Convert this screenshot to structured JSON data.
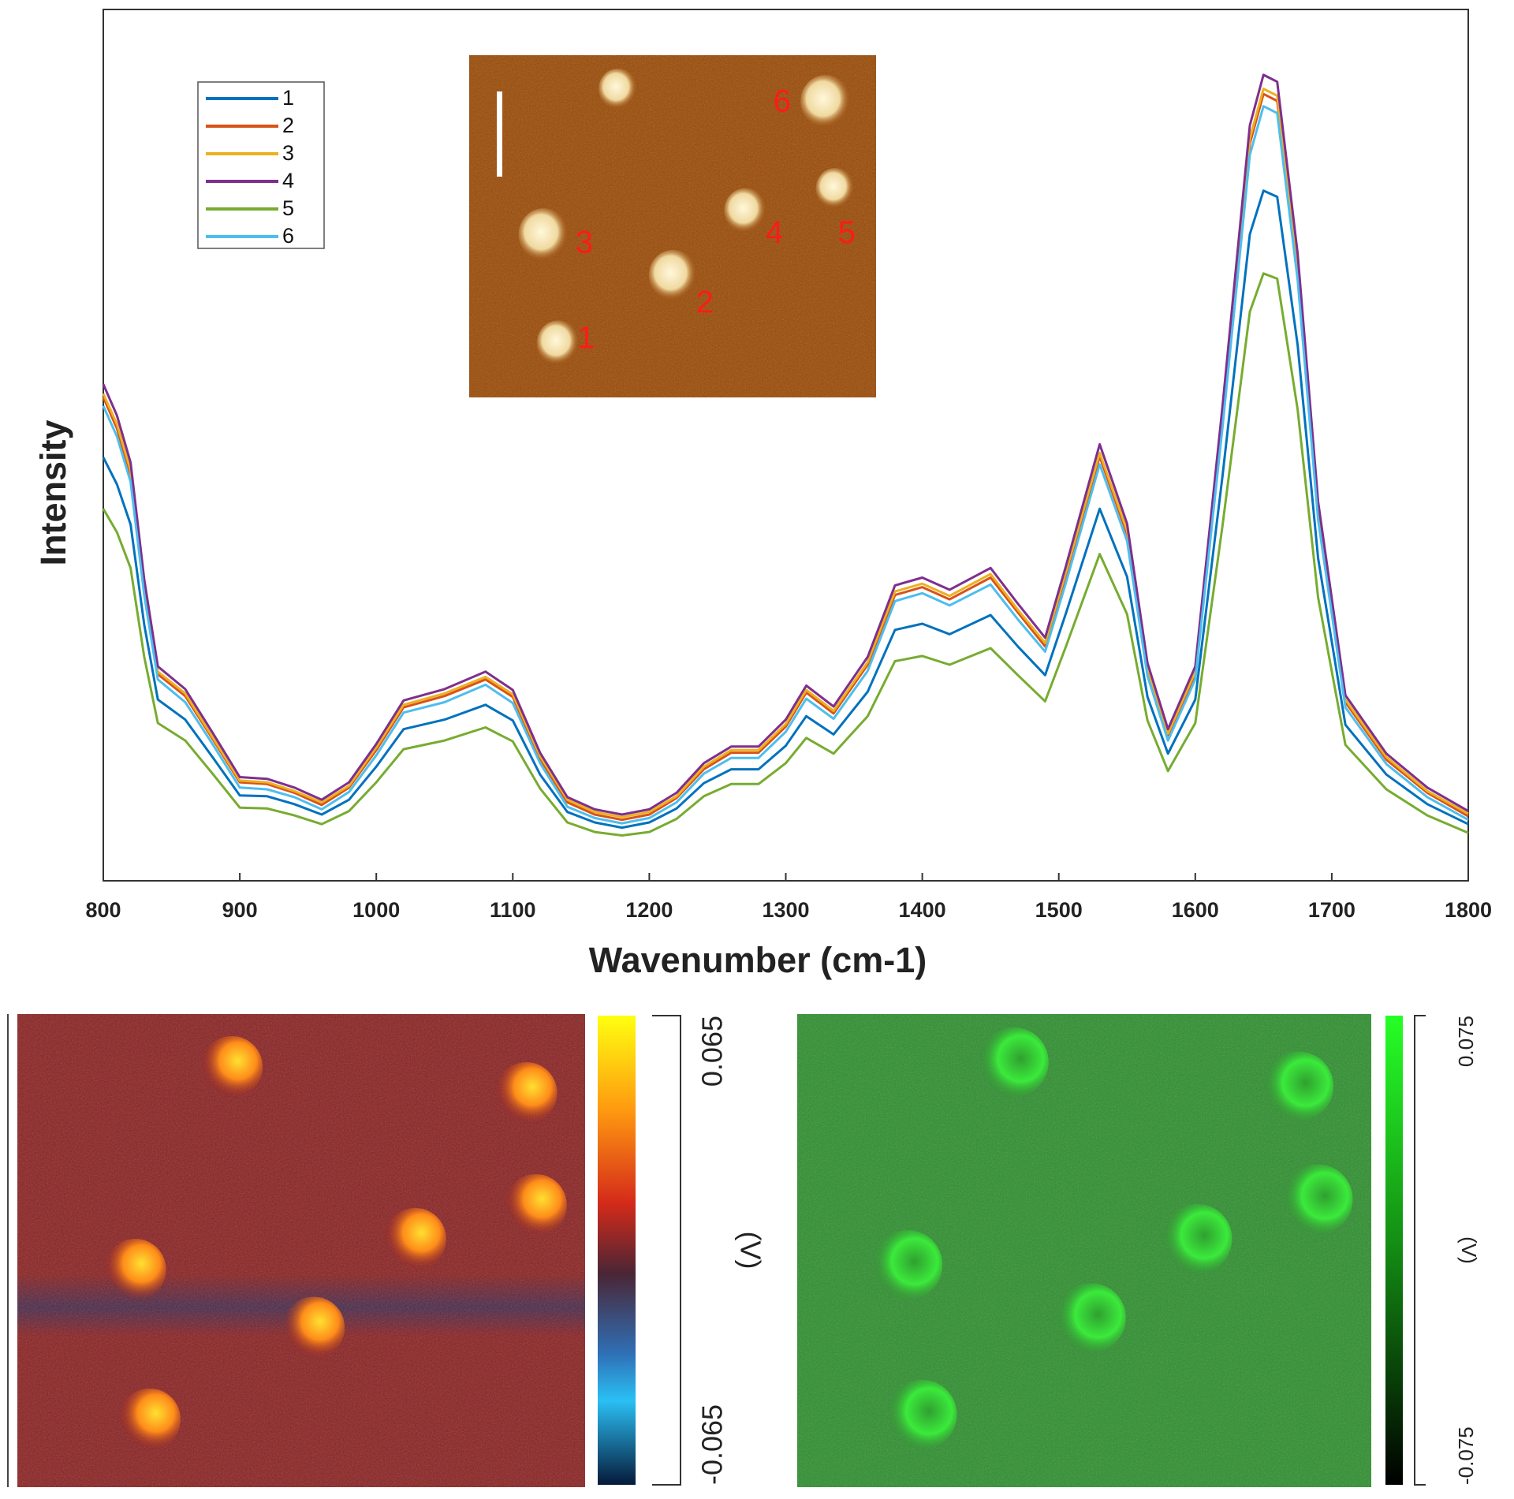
{
  "chart_data": [
    {
      "type": "line",
      "xlabel": "Wavenumber (cm-1)",
      "ylabel": "Intensity",
      "x": [
        800,
        810,
        820,
        830,
        840,
        860,
        880,
        900,
        920,
        940,
        960,
        980,
        1000,
        1020,
        1050,
        1080,
        1100,
        1120,
        1140,
        1160,
        1180,
        1200,
        1220,
        1240,
        1260,
        1280,
        1300,
        1315,
        1335,
        1360,
        1380,
        1400,
        1420,
        1450,
        1470,
        1490,
        1505,
        1530,
        1550,
        1565,
        1580,
        1600,
        1620,
        1640,
        1650,
        1660,
        1675,
        1690,
        1710,
        1740,
        1770,
        1800
      ],
      "xlim": [
        800,
        1800
      ],
      "xticks": [
        800,
        900,
        1000,
        1100,
        1200,
        1300,
        1400,
        1500,
        1600,
        1700,
        1800
      ],
      "ylim": [
        0,
        1
      ],
      "legend": "upper left",
      "series": [
        {
          "name": "1",
          "color": "#0072bd",
          "values": [
            0.486,
            0.455,
            0.409,
            0.294,
            0.208,
            0.185,
            0.142,
            0.098,
            0.097,
            0.088,
            0.076,
            0.093,
            0.131,
            0.174,
            0.185,
            0.202,
            0.184,
            0.122,
            0.079,
            0.067,
            0.061,
            0.067,
            0.083,
            0.112,
            0.128,
            0.128,
            0.155,
            0.189,
            0.168,
            0.217,
            0.288,
            0.295,
            0.283,
            0.305,
            0.269,
            0.236,
            0.306,
            0.427,
            0.349,
            0.211,
            0.146,
            0.208,
            0.465,
            0.742,
            0.792,
            0.785,
            0.615,
            0.37,
            0.179,
            0.122,
            0.088,
            0.065
          ]
        },
        {
          "name": "2",
          "color": "#d95319",
          "values": [
            0.555,
            0.519,
            0.466,
            0.335,
            0.237,
            0.212,
            0.163,
            0.113,
            0.111,
            0.101,
            0.087,
            0.107,
            0.15,
            0.199,
            0.212,
            0.231,
            0.211,
            0.14,
            0.09,
            0.076,
            0.07,
            0.076,
            0.095,
            0.128,
            0.147,
            0.147,
            0.177,
            0.216,
            0.192,
            0.248,
            0.328,
            0.337,
            0.323,
            0.348,
            0.308,
            0.269,
            0.349,
            0.487,
            0.398,
            0.241,
            0.167,
            0.237,
            0.53,
            0.846,
            0.903,
            0.895,
            0.702,
            0.422,
            0.205,
            0.139,
            0.101,
            0.074
          ]
        },
        {
          "name": "3",
          "color": "#edb120",
          "values": [
            0.559,
            0.524,
            0.471,
            0.339,
            0.24,
            0.215,
            0.165,
            0.115,
            0.113,
            0.103,
            0.09,
            0.109,
            0.153,
            0.202,
            0.215,
            0.234,
            0.214,
            0.143,
            0.093,
            0.079,
            0.073,
            0.079,
            0.097,
            0.131,
            0.15,
            0.15,
            0.18,
            0.219,
            0.195,
            0.251,
            0.332,
            0.341,
            0.327,
            0.352,
            0.311,
            0.273,
            0.353,
            0.491,
            0.402,
            0.244,
            0.169,
            0.24,
            0.535,
            0.852,
            0.909,
            0.901,
            0.707,
            0.426,
            0.208,
            0.142,
            0.103,
            0.077
          ]
        },
        {
          "name": "4",
          "color": "#7e2f8e",
          "values": [
            0.57,
            0.534,
            0.48,
            0.346,
            0.246,
            0.22,
            0.17,
            0.119,
            0.117,
            0.107,
            0.093,
            0.113,
            0.157,
            0.207,
            0.22,
            0.24,
            0.219,
            0.147,
            0.096,
            0.082,
            0.076,
            0.082,
            0.101,
            0.135,
            0.154,
            0.154,
            0.185,
            0.224,
            0.2,
            0.257,
            0.339,
            0.348,
            0.334,
            0.359,
            0.318,
            0.279,
            0.36,
            0.501,
            0.41,
            0.25,
            0.174,
            0.246,
            0.545,
            0.867,
            0.925,
            0.917,
            0.72,
            0.435,
            0.213,
            0.146,
            0.107,
            0.08
          ]
        },
        {
          "name": "5",
          "color": "#77ac30",
          "values": [
            0.427,
            0.4,
            0.359,
            0.257,
            0.181,
            0.161,
            0.123,
            0.084,
            0.083,
            0.075,
            0.065,
            0.08,
            0.113,
            0.151,
            0.161,
            0.176,
            0.16,
            0.106,
            0.067,
            0.056,
            0.052,
            0.056,
            0.071,
            0.097,
            0.111,
            0.111,
            0.135,
            0.164,
            0.146,
            0.189,
            0.252,
            0.258,
            0.248,
            0.267,
            0.236,
            0.206,
            0.268,
            0.375,
            0.306,
            0.184,
            0.126,
            0.181,
            0.408,
            0.653,
            0.697,
            0.691,
            0.541,
            0.325,
            0.156,
            0.105,
            0.075,
            0.055
          ]
        },
        {
          "name": "6",
          "color": "#4dbeee",
          "values": [
            0.545,
            0.51,
            0.458,
            0.328,
            0.231,
            0.205,
            0.157,
            0.107,
            0.105,
            0.096,
            0.082,
            0.102,
            0.144,
            0.193,
            0.205,
            0.225,
            0.204,
            0.135,
            0.085,
            0.072,
            0.066,
            0.072,
            0.09,
            0.123,
            0.141,
            0.141,
            0.171,
            0.209,
            0.186,
            0.241,
            0.321,
            0.33,
            0.316,
            0.34,
            0.3,
            0.263,
            0.341,
            0.478,
            0.39,
            0.235,
            0.161,
            0.231,
            0.521,
            0.833,
            0.889,
            0.881,
            0.69,
            0.414,
            0.199,
            0.134,
            0.096,
            0.07
          ]
        }
      ],
      "annotations": [
        "1",
        "2",
        "3",
        "4",
        "5",
        "6"
      ]
    },
    {
      "type": "heatmap",
      "colorbar_label": "(V)",
      "colorbar_lim": [
        -0.065,
        0.065
      ],
      "colorbar_ticks": [
        -0.065,
        0.065
      ]
    },
    {
      "type": "heatmap",
      "colorbar_label": "(V)",
      "colorbar_lim": [
        -0.075,
        0.075
      ],
      "colorbar_ticks": [
        -0.075,
        0.075
      ]
    }
  ]
}
